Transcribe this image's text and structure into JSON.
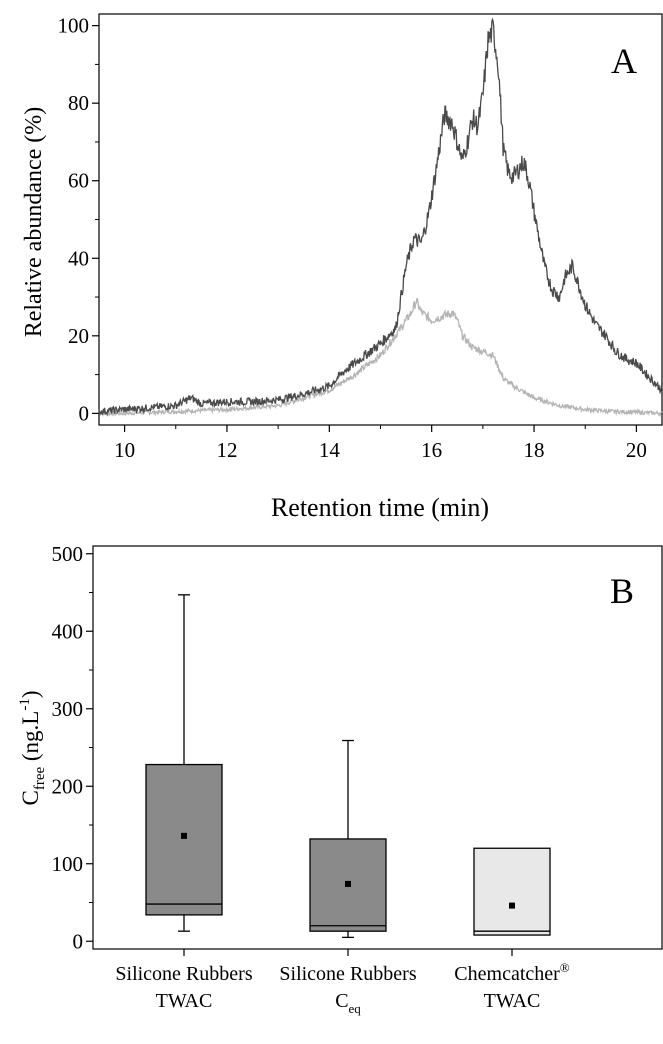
{
  "chart_data": [
    {
      "panel_letter": "A",
      "type": "line",
      "xlabel": "Retention time (min)",
      "ylabel": "Relative abundance (%)",
      "xlim": [
        9.5,
        20.5
      ],
      "ylim": [
        -3,
        103
      ],
      "xticks": [
        "10",
        "12",
        "14",
        "16",
        "18",
        "20"
      ],
      "yticks": [
        "0",
        "20",
        "40",
        "60",
        "80",
        "100"
      ],
      "grid": false,
      "colors": {
        "dark": "#4a4a4a",
        "light": "#b4b4b4"
      },
      "series": [
        {
          "color_key": "dark",
          "x": [
            9.5,
            10.0,
            10.5,
            11.0,
            11.3,
            11.5,
            12.0,
            12.5,
            13.0,
            13.5,
            14.0,
            14.3,
            14.6,
            15.0,
            15.3,
            15.5,
            15.65,
            15.8,
            15.95,
            16.1,
            16.25,
            16.4,
            16.5,
            16.6,
            16.7,
            16.8,
            16.9,
            17.0,
            17.1,
            17.2,
            17.3,
            17.4,
            17.5,
            17.6,
            17.8,
            17.9,
            18.0,
            18.1,
            18.2,
            18.35,
            18.5,
            18.6,
            18.75,
            18.85,
            19.0,
            19.2,
            19.4,
            19.6,
            19.8,
            20.0,
            20.2,
            20.5
          ],
          "y": [
            0.5,
            1,
            1.5,
            2,
            4,
            2.5,
            3,
            3,
            3.5,
            5,
            7,
            11,
            14,
            18,
            22,
            38,
            45,
            44,
            52,
            64,
            77,
            75,
            70,
            65,
            70,
            76,
            74,
            82,
            96,
            99,
            90,
            68,
            62,
            61,
            65,
            60,
            52,
            45,
            38,
            32,
            30,
            35,
            38,
            34,
            28,
            23,
            20,
            16,
            14,
            13,
            10,
            6
          ]
        },
        {
          "color_key": "light",
          "x": [
            9.5,
            10.0,
            11.0,
            12.0,
            13.0,
            14.0,
            14.5,
            15.0,
            15.4,
            15.6,
            15.7,
            15.8,
            16.0,
            16.2,
            16.4,
            16.5,
            16.6,
            16.8,
            17.0,
            17.2,
            17.4,
            17.6,
            18.0,
            18.5,
            19.0,
            19.5,
            20.0,
            20.5
          ],
          "y": [
            0,
            0,
            0.5,
            1,
            2,
            6,
            10,
            15,
            22,
            26,
            29,
            26,
            24,
            25,
            26,
            24,
            20,
            17,
            16,
            15,
            9,
            7,
            4,
            2,
            1,
            0.5,
            0.3,
            0
          ]
        }
      ]
    },
    {
      "panel_letter": "B",
      "type": "box",
      "ylabel": {
        "base": "C",
        "sub": "free",
        "rest": " (ng.L",
        "sup": "-1",
        "end": ")"
      },
      "ylim": [
        -10,
        510
      ],
      "yticks": [
        "0",
        "100",
        "200",
        "300",
        "400",
        "500"
      ],
      "colors": {
        "dark": "#8a8a8a",
        "light": "#e8e8e8"
      },
      "categories": [
        {
          "line1": "Silicone Rubbers",
          "line2": "TWAC",
          "line2_sub": "",
          "line1_sup": ""
        },
        {
          "line1": "Silicone Rubbers",
          "line2": "C",
          "line2_sub": "eq",
          "line1_sup": ""
        },
        {
          "line1": "Chemcatcher",
          "line2": "TWAC",
          "line2_sub": "",
          "line1_sup": "®"
        }
      ],
      "boxes": [
        {
          "whisker_low": 13,
          "q1": 34,
          "median": 48,
          "q3": 228,
          "whisker_high": 447,
          "mean": 136,
          "color_key": "dark"
        },
        {
          "whisker_low": 5,
          "q1": 13,
          "median": 20,
          "q3": 132,
          "whisker_high": 259,
          "mean": 74,
          "color_key": "dark"
        },
        {
          "whisker_low": 8,
          "q1": 8,
          "median": 13,
          "q3": 120,
          "whisker_high": 120,
          "mean": 46,
          "color_key": "light"
        }
      ]
    }
  ]
}
